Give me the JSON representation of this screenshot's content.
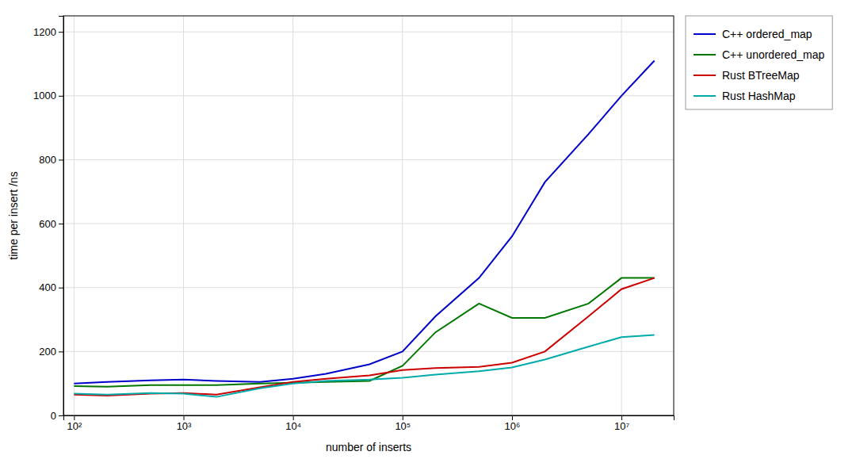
{
  "chart_data": {
    "type": "line",
    "xlabel": "number of inserts",
    "ylabel": "time per insert /ns",
    "x": [
      100,
      200,
      500,
      1000,
      2000,
      5000,
      10000,
      20000,
      50000,
      100000,
      200000,
      500000,
      1000000,
      2000000,
      5000000,
      10000000,
      20000000
    ],
    "series": [
      {
        "name": "C++ ordered_map",
        "color": "#0000cc",
        "values": [
          100,
          105,
          110,
          112,
          108,
          105,
          115,
          130,
          160,
          200,
          310,
          430,
          560,
          730,
          880,
          1000,
          1110
        ]
      },
      {
        "name": "C++ unordered_map",
        "color": "#007700",
        "values": [
          92,
          90,
          95,
          95,
          95,
          100,
          102,
          105,
          108,
          155,
          260,
          350,
          305,
          305,
          350,
          430,
          430
        ]
      },
      {
        "name": "Rust BTreeMap",
        "color": "#cc0000",
        "values": [
          65,
          62,
          68,
          70,
          65,
          88,
          105,
          115,
          125,
          142,
          148,
          152,
          165,
          200,
          310,
          395,
          430
        ]
      },
      {
        "name": "Rust HashMap",
        "color": "#00aaaa",
        "values": [
          68,
          65,
          70,
          68,
          58,
          85,
          100,
          108,
          112,
          118,
          128,
          138,
          150,
          175,
          215,
          245,
          252
        ]
      }
    ],
    "log": "x",
    "xlim": [
      80,
      30000000
    ],
    "ylim": [
      0,
      1250
    ],
    "xticks": [
      {
        "value": 100,
        "label": "10²"
      },
      {
        "value": 1000,
        "label": "10³"
      },
      {
        "value": 10000,
        "label": "10⁴"
      },
      {
        "value": 100000,
        "label": "10⁵"
      },
      {
        "value": 1000000,
        "label": "10⁶"
      },
      {
        "value": 10000000,
        "label": "10⁷"
      }
    ],
    "yticks": [
      0,
      200,
      400,
      600,
      800,
      1000,
      1200
    ],
    "grid": true,
    "legend": "right"
  }
}
